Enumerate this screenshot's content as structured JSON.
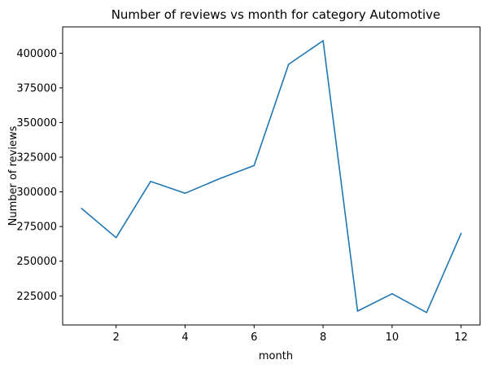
{
  "chart_data": {
    "type": "line",
    "title": "Number of reviews vs month for category Automotive",
    "xlabel": "month",
    "ylabel": "Number of reviews",
    "xlim": [
      0.45,
      12.55
    ],
    "ylim": [
      204000,
      419000
    ],
    "xticks": [
      2,
      4,
      6,
      8,
      10,
      12
    ],
    "yticks": [
      225000,
      250000,
      275000,
      300000,
      325000,
      350000,
      375000,
      400000
    ],
    "grid": false,
    "line_color": "#1f77b4",
    "x": [
      1,
      2,
      3,
      4,
      5,
      6,
      7,
      8,
      9,
      10,
      11,
      12
    ],
    "y": [
      288000,
      267000,
      307500,
      299000,
      309500,
      319000,
      392000,
      409000,
      214000,
      226500,
      213000,
      270000
    ]
  }
}
